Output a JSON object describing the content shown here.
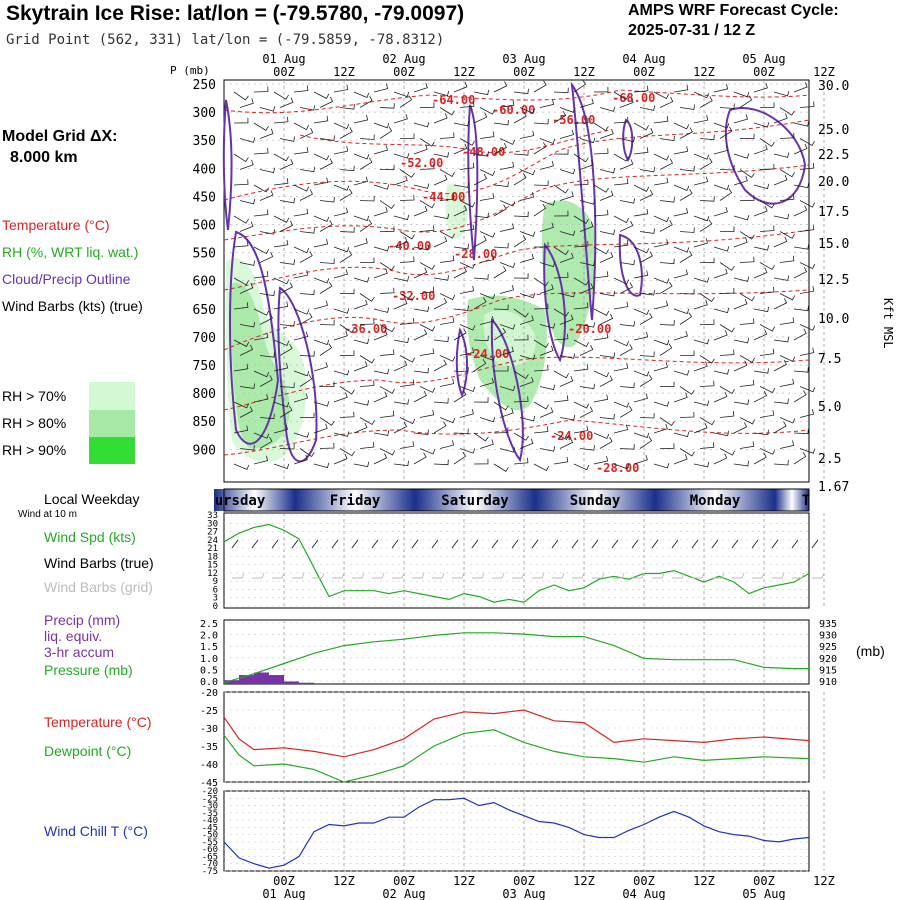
{
  "header": {
    "title": "Skytrain Ice Rise:  lat/lon = (-79.5780, -79.0097)",
    "subtitle": "Grid Point (562, 331) lat/lon = (-79.5859, -78.8312)",
    "cycle_label": "AMPS WRF Forecast Cycle:",
    "cycle_value": "2025-07-31 / 12  Z"
  },
  "left_legend": {
    "model_grid_label": "Model Grid ΔX:",
    "model_grid_value": "8.000 km",
    "temperature": "Temperature (°C)",
    "rh": "RH (%, WRT liq. wat.)",
    "cloud": "Cloud/Precip Outline",
    "wind": "Wind Barbs (kts) (true)",
    "rh_levels": [
      {
        "label": "RH > 70%",
        "color": "#d4f7d4"
      },
      {
        "label": "RH > 80%",
        "color": "#a6e8a6"
      },
      {
        "label": "RH > 90%",
        "color": "#33dd33"
      }
    ]
  },
  "colors": {
    "temperature": "#dd2222",
    "rh": "#22aa22",
    "cloud": "#6633aa",
    "wind_chill": "#2233bb",
    "pressure": "#22aa22",
    "precip": "#7733aa"
  },
  "time_axis": {
    "top_dates": [
      "01 Aug",
      "02 Aug",
      "03 Aug",
      "04 Aug",
      "05 Aug"
    ],
    "hour_labels": [
      "00Z",
      "12Z",
      "00Z",
      "12Z",
      "00Z",
      "12Z",
      "00Z",
      "12Z",
      "00Z",
      "12Z"
    ],
    "bottom_dates": [
      "01 Aug",
      "02 Aug",
      "03 Aug",
      "04 Aug",
      "05 Aug"
    ]
  },
  "weekday_band": {
    "title": "Local Weekday",
    "days": [
      "ursday",
      "Friday",
      "Saturday",
      "Sunday",
      "Monday",
      "T"
    ]
  },
  "chart_data": [
    {
      "type": "heatmap",
      "title": "Cross-section",
      "ylabel": "P (mb)",
      "y2label": "Kft MSL",
      "pressure_ticks": [
        "250",
        "300",
        "350",
        "400",
        "450",
        "500",
        "550",
        "600",
        "650",
        "700",
        "750",
        "800",
        "850",
        "900"
      ],
      "height_ticks": [
        "30.0",
        "25.0",
        "22.5",
        "20.0",
        "17.5",
        "15.0",
        "12.5",
        "10.0",
        "7.5",
        "5.0",
        "2.5",
        "1.67"
      ],
      "temperature_labels": [
        "-64.00",
        "-60.00",
        "-56.00",
        "-68.00",
        "-52.00",
        "-48.00",
        "-44.00",
        "-40.00",
        "-28.00",
        "-32.00",
        "-36.00",
        "-24.00",
        "-20.00",
        "-24.00",
        "-28.00"
      ]
    },
    {
      "type": "line",
      "title": "Wind Spd (kts)",
      "subtitle": "Wind at 10 m",
      "labels": [
        "Wind Spd (kts)",
        "Wind Barbs (true)",
        "Wind Barbs (grid)"
      ],
      "y_ticks": [
        "33",
        "30",
        "27",
        "24",
        "21",
        "18",
        "15",
        "12",
        "9",
        "6",
        "3",
        "0"
      ],
      "ylim": [
        0,
        33
      ],
      "series": [
        {
          "name": "Wind Spd (kts)",
          "x": [
            0,
            3,
            6,
            9,
            12,
            15,
            18,
            21,
            24,
            27,
            30,
            33,
            36,
            39,
            42,
            45,
            48,
            51,
            54,
            57,
            60,
            63,
            66,
            69,
            72,
            75,
            78,
            81,
            84,
            87,
            90,
            93,
            96,
            99,
            102,
            105,
            108,
            111,
            114,
            117
          ],
          "values": [
            23,
            26,
            28,
            29,
            27,
            24,
            14,
            4,
            6,
            6,
            6,
            5,
            6,
            5,
            4,
            3,
            5,
            4,
            2,
            3,
            2,
            6,
            8,
            6,
            7,
            10,
            11,
            10,
            12,
            12,
            13,
            11,
            9,
            11,
            9,
            5,
            7,
            8,
            9,
            12
          ]
        }
      ]
    },
    {
      "type": "line",
      "title": "Precip / Pressure",
      "labels": [
        "Precip (mm)",
        "liq. equiv.",
        "3-hr accum",
        "Pressure (mb)"
      ],
      "y_ticks": [
        "2.5",
        "2.0",
        "1.5",
        "1.0",
        "0.5",
        "0.0"
      ],
      "y2_ticks": [
        "935",
        "930",
        "925",
        "920",
        "915",
        "910"
      ],
      "y2label": "(mb)",
      "ylim": [
        0,
        2.5
      ],
      "y2lim": [
        910,
        935
      ],
      "precip_bars": {
        "x": [
          0,
          3,
          6,
          9,
          12,
          15
        ],
        "values": [
          0.15,
          0.35,
          0.45,
          0.35,
          0.1,
          0.05
        ]
      },
      "series": [
        {
          "name": "Pressure (mb)",
          "x": [
            0,
            6,
            12,
            18,
            24,
            30,
            36,
            42,
            48,
            54,
            60,
            66,
            72,
            78,
            84,
            90,
            96,
            102,
            108,
            114,
            117
          ],
          "values": [
            910.5,
            914,
            918,
            922,
            925,
            926.5,
            927.5,
            929,
            930,
            930,
            929.5,
            928.5,
            928.5,
            925,
            920,
            919.5,
            919.5,
            919.5,
            916.5,
            916,
            916
          ]
        }
      ]
    },
    {
      "type": "line",
      "title": "Temperature / Dewpoint",
      "labels": [
        "Temperature (°C)",
        "Dewpoint (°C)"
      ],
      "y_ticks": [
        "-20",
        "-25",
        "-30",
        "-35",
        "-40",
        "-45"
      ],
      "ylim": [
        -45,
        -20
      ],
      "series": [
        {
          "name": "Temperature (°C)",
          "x": [
            0,
            3,
            6,
            12,
            18,
            24,
            30,
            36,
            42,
            48,
            54,
            60,
            66,
            72,
            78,
            84,
            90,
            96,
            102,
            108,
            117
          ],
          "values": [
            -27,
            -33,
            -36,
            -35.5,
            -36.5,
            -38,
            -36,
            -33,
            -27.5,
            -25.5,
            -26,
            -25,
            -28,
            -28.5,
            -34,
            -33,
            -33.5,
            -34,
            -33,
            -32.5,
            -33.5
          ]
        },
        {
          "name": "Dewpoint (°C)",
          "x": [
            0,
            3,
            6,
            12,
            18,
            24,
            30,
            36,
            42,
            48,
            54,
            60,
            66,
            72,
            78,
            84,
            90,
            96,
            102,
            108,
            117
          ],
          "values": [
            -32,
            -37.5,
            -40.5,
            -40,
            -41.5,
            -45,
            -43,
            -40.5,
            -35,
            -31.5,
            -30.5,
            -34,
            -36.5,
            -38,
            -38.5,
            -39.5,
            -38,
            -39,
            -38.5,
            -38,
            -38.5
          ]
        }
      ]
    },
    {
      "type": "line",
      "title": "Wind Chill T (°C)",
      "y_ticks": [
        "-20",
        "-25",
        "-30",
        "-35",
        "-40",
        "-45",
        "-50",
        "-55",
        "-60",
        "-65",
        "-70",
        "-75"
      ],
      "ylim": [
        -75,
        -20
      ],
      "series": [
        {
          "name": "Wind Chill T (°C)",
          "x": [
            0,
            3,
            6,
            9,
            12,
            15,
            18,
            21,
            24,
            27,
            30,
            33,
            36,
            39,
            42,
            45,
            48,
            51,
            54,
            57,
            60,
            63,
            66,
            69,
            72,
            75,
            78,
            81,
            84,
            87,
            90,
            93,
            96,
            99,
            102,
            105,
            108,
            111,
            114,
            117
          ],
          "values": [
            -55,
            -66,
            -70,
            -73,
            -71,
            -65,
            -48,
            -43,
            -44,
            -42,
            -42,
            -38,
            -38,
            -31,
            -26,
            -26,
            -25,
            -30,
            -28,
            -33,
            -37,
            -41,
            -42,
            -45,
            -50,
            -52,
            -52,
            -47,
            -43,
            -38,
            -34,
            -38,
            -44,
            -48,
            -50,
            -51,
            -54,
            -55,
            -53,
            -52
          ]
        }
      ]
    }
  ]
}
